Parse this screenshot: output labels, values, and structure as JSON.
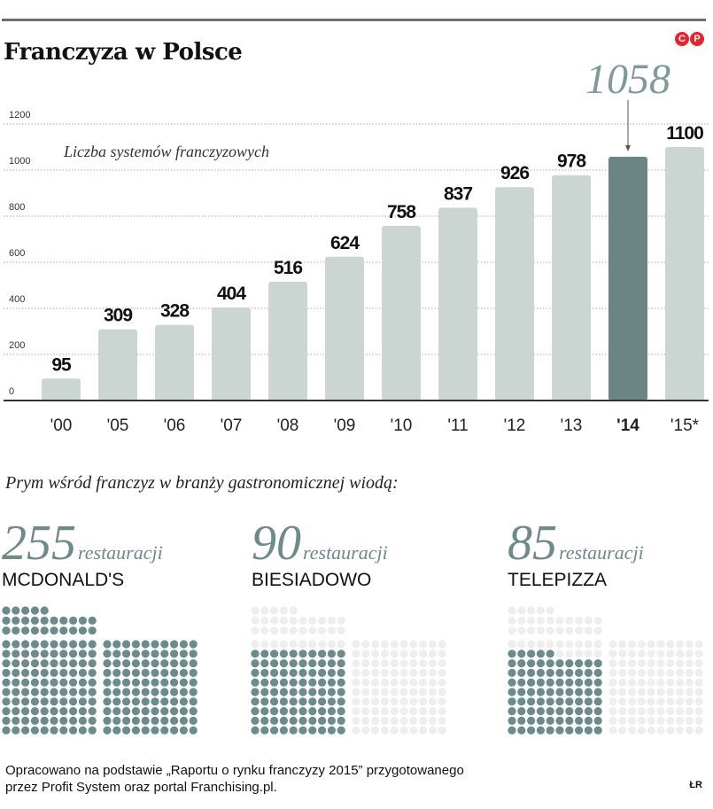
{
  "header": {
    "title": "Franczyza w Polsce",
    "logo_letters": [
      "C",
      "P"
    ]
  },
  "chart_data": {
    "type": "bar",
    "title": "Franczyza w Polsce",
    "ylabel": "Liczba systemów franczyzowych",
    "categories": [
      "'00",
      "'05",
      "'06",
      "'07",
      "'08",
      "'09",
      "'10",
      "'11",
      "'12",
      "'13",
      "'14",
      "'15*"
    ],
    "values": [
      95,
      309,
      328,
      404,
      516,
      624,
      758,
      837,
      926,
      978,
      1058,
      1100
    ],
    "value_labels": [
      "95",
      "309",
      "328",
      "404",
      "516",
      "624",
      "758",
      "837",
      "926",
      "978",
      "1058",
      "1100"
    ],
    "highlight_index": 10,
    "highlight_annotation": "1058",
    "yticks": [
      "0",
      "200",
      "400",
      "600",
      "800",
      "1000",
      "1200"
    ],
    "ytick_values": [
      0,
      200,
      400,
      600,
      800,
      1000,
      1200
    ],
    "ylim": [
      0,
      1200
    ],
    "grid": true,
    "colors": {
      "bar": "#cbd6d3",
      "highlight": "#6b8584",
      "dot_on": "#6b8c8b",
      "dot_off": "#eeeeee"
    }
  },
  "restaurants": {
    "heading": "Prym wśród franczyz w branży gastronomicznej wiodą:",
    "unit": "restauracji",
    "total_dots": 255,
    "items": [
      {
        "count": "255",
        "value": 255,
        "name": "MCDONALD'S"
      },
      {
        "count": "90",
        "value": 90,
        "name": "BIESIADOWO"
      },
      {
        "count": "85",
        "value": 85,
        "name": "TELEPIZZA"
      }
    ]
  },
  "footer": {
    "line1": "Opracowano na podstawie „Raportu o rynku franczyzy 2015” przygotowanego",
    "line2": "przez Profit System oraz portal Franchising.pl.",
    "signature": "ŁR"
  }
}
